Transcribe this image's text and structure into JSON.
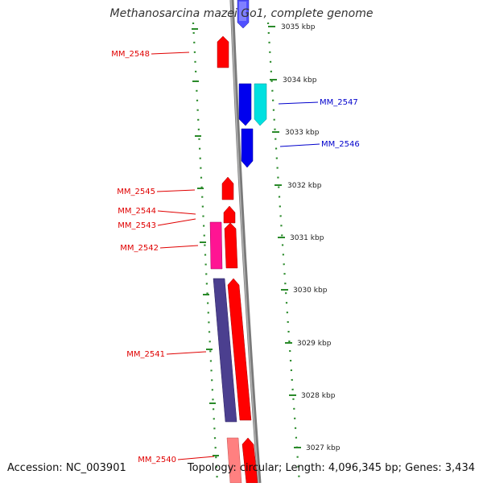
{
  "title": "Methanosarcina mazei Go1, complete genome",
  "footer": {
    "accession": "Accession: NC_003901",
    "topology": "Topology: circular; Length: 4,096,345 bp; Genes: 3,434"
  },
  "ruler": {
    "ticks": [
      "3035 kbp",
      "3034 kbp",
      "3033 kbp",
      "3032 kbp",
      "3031 kbp",
      "3030 kbp",
      "3029 kbp",
      "3028 kbp",
      "3027 kbp"
    ]
  },
  "genes": {
    "left": [
      "MM_2548",
      "MM_2545",
      "MM_2544",
      "MM_2543",
      "MM_2542",
      "MM_2541",
      "MM_2540"
    ],
    "right": [
      "MM_2547",
      "MM_2546"
    ]
  },
  "colors": {
    "red": "#ff0000",
    "blue": "#0000ee",
    "cyan": "#00e0e0",
    "magenta": "#ff1493",
    "slate": "#4b3f8f",
    "pink": "#ff8080",
    "ruler_green": "#2a8a2a",
    "backbone": "#7a7a7a"
  }
}
